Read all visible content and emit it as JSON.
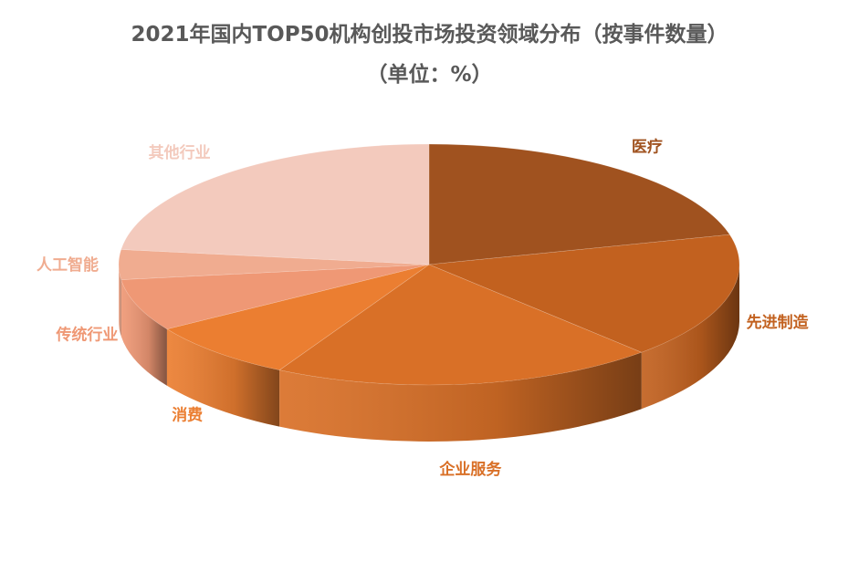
{
  "chart_data": {
    "type": "pie",
    "title": "2021年国内TOP50机构创投市场投资领域分布（按事件数量）",
    "subtitle": "（单位：%）",
    "categories": [
      "医疗",
      "先进制造",
      "企业服务",
      "消费",
      "传统行业",
      "人工智能",
      "其他行业"
    ],
    "values": [
      21,
      17,
      20,
      8,
      7,
      4,
      23
    ],
    "colors": [
      "#A0521F",
      "#C2611F",
      "#D97027",
      "#EB7E31",
      "#EF9875",
      "#F0AC90",
      "#F3CABD"
    ],
    "legend": "none",
    "data_labels": "category names outside slices"
  }
}
